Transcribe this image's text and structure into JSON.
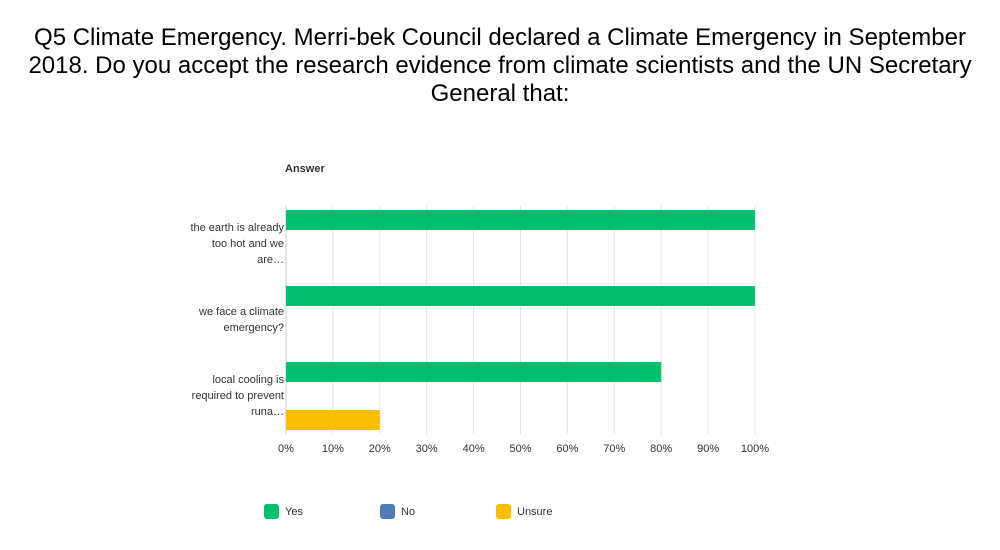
{
  "chart_data": {
    "type": "bar",
    "orientation": "horizontal",
    "title": "Q5 Climate Emergency. Merri-bek Council declared a Climate Emergency in September 2018. Do you accept the research evidence from climate scientists and the UN Secretary General that:",
    "axis_title": "Answer",
    "categories": [
      "the earth is already too hot and we are…",
      "we face a climate emergency?",
      "local cooling is required to prevent runa…"
    ],
    "series": [
      {
        "name": "Yes",
        "color": "#00bf6f",
        "values": [
          100,
          100,
          80
        ]
      },
      {
        "name": "No",
        "color": "#507cb6",
        "values": [
          0,
          0,
          0
        ]
      },
      {
        "name": "Unsure",
        "color": "#f9be00",
        "values": [
          0,
          0,
          20
        ]
      }
    ],
    "xlim": [
      0,
      100
    ],
    "xticks": [
      {
        "value": 0,
        "label": "0%"
      },
      {
        "value": 10,
        "label": "10%"
      },
      {
        "value": 20,
        "label": "20%"
      },
      {
        "value": 30,
        "label": "30%"
      },
      {
        "value": 40,
        "label": "40%"
      },
      {
        "value": 50,
        "label": "50%"
      },
      {
        "value": 60,
        "label": "60%"
      },
      {
        "value": 70,
        "label": "70%"
      },
      {
        "value": 80,
        "label": "80%"
      },
      {
        "value": 90,
        "label": "90%"
      },
      {
        "value": 100,
        "label": "100%"
      }
    ],
    "grid": true
  }
}
